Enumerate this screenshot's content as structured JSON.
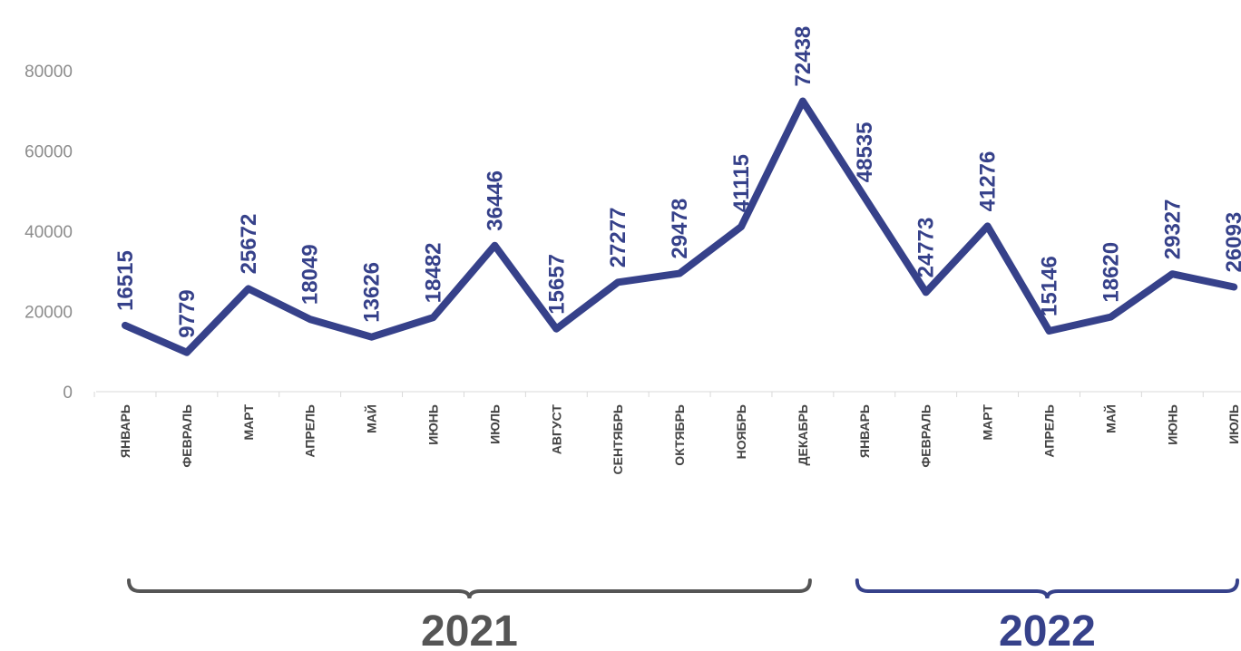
{
  "chart_data": {
    "type": "line",
    "title": "",
    "xlabel": "",
    "ylabel": "",
    "categories": [
      "ЯНВАРЬ",
      "ФЕВРАЛЬ",
      "МАРТ",
      "АПРЕЛЬ",
      "МАЙ",
      "ИЮНЬ",
      "ИЮЛЬ",
      "АВГУСТ",
      "СЕНТЯБРЬ",
      "ОКТЯБРЬ",
      "НОЯБРЬ",
      "ДЕКАБРЬ",
      "ЯНВАРЬ",
      "ФЕВРАЛЬ",
      "МАРТ",
      "АПРЕЛЬ",
      "МАЙ",
      "ИЮНЬ",
      "ИЮЛЬ"
    ],
    "series": [
      {
        "values": [
          16515,
          9779,
          25672,
          18049,
          13626,
          18482,
          36446,
          15657,
          27277,
          29478,
          41115,
          72438,
          48535,
          24773,
          41276,
          15146,
          18620,
          29327,
          26093
        ]
      }
    ],
    "ylim": [
      0,
      80000
    ],
    "yticks": [
      "0",
      "20000",
      "40000",
      "60000",
      "80000"
    ],
    "grid": false,
    "data_labels": true,
    "line_color": "#36418a",
    "year_groups": [
      {
        "label": "2021",
        "start": 0,
        "end": 11,
        "color": "#555555"
      },
      {
        "label": "2022",
        "start": 12,
        "end": 18,
        "color": "#36418a"
      }
    ]
  }
}
